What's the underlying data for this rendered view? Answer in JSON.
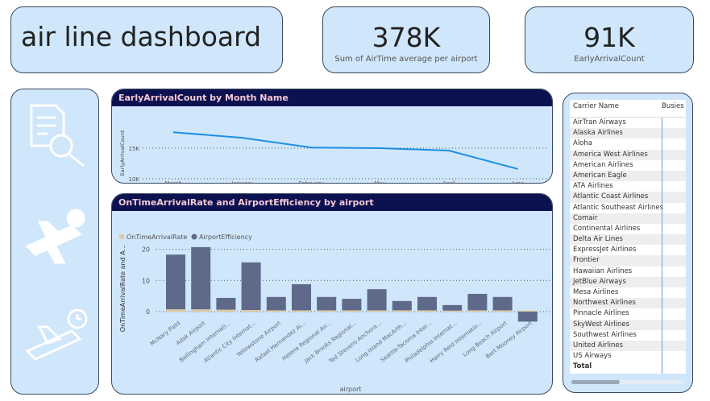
{
  "title": "air line dashboard",
  "kpis": [
    {
      "value": "378K",
      "label": "Sum of AirTime average per airport"
    },
    {
      "value": "91K",
      "label": "EarlyArrivalCount"
    }
  ],
  "icons": [
    "document-search-icon",
    "plane-clock-icon",
    "plane-clock-outline-icon"
  ],
  "chart_data": [
    {
      "type": "line",
      "title": "EarlyArrivalCount by Month Name",
      "ylabel": "EarlyArrivalCount",
      "xlabel": "",
      "categories": [
        "March",
        "January",
        "February",
        "May",
        "April",
        "June"
      ],
      "values": [
        17600,
        16700,
        15100,
        15000,
        14600,
        11600
      ],
      "yticks": [
        "10K",
        "15K"
      ],
      "ylim": [
        10000,
        19000
      ],
      "color": "#1e8fe0",
      "grid": true
    },
    {
      "type": "bar",
      "title": "OnTimeArrivalRate and AirportEfficiency by airport",
      "xlabel": "airport",
      "ylabel": "OnTimeArrivalRate and A...",
      "legend": "top-left",
      "yticks": [
        "0",
        "10",
        "20"
      ],
      "ylim": [
        -5,
        22
      ],
      "categories": [
        "McNary Field",
        "Adak Airport",
        "Bellingham Internati...",
        "Atlantic City Internat...",
        "Yellowstone Airport",
        "Rafael Hernandez Ai...",
        "Helena Regional Air...",
        "Jack Brooks Regional...",
        "Ted Stevens Anchora...",
        "Long Island MacArth...",
        "Seattle-Tacoma Inter...",
        "Philadelphia Internat...",
        "Harry Reid Internatio...",
        "Long Beach Airport",
        "Bert Mooney Airport"
      ],
      "series": [
        {
          "name": "OnTimeArrivalRate",
          "color": "#e0c9a0",
          "values": [
            0.7,
            0.7,
            0.6,
            0.5,
            0.4,
            0.4,
            0.4,
            0.4,
            0.4,
            0.4,
            0.4,
            0.3,
            0.4,
            0.4,
            0.3
          ]
        },
        {
          "name": "AirportEfficiency",
          "color": "#5f6a8a",
          "values": [
            17.6,
            20,
            3.8,
            15.3,
            4.3,
            8.4,
            4.3,
            3.7,
            6.8,
            3.0,
            4.3,
            1.8,
            5.3,
            4.3,
            -3.2
          ]
        }
      ]
    }
  ],
  "table": {
    "columns": [
      "Carrier Name",
      "Busies"
    ],
    "rows": [
      "AirTran Airways",
      "Alaska Airlines",
      "Aloha",
      "America West Airlines",
      "American Airlines",
      "American Eagle",
      "ATA Airlines",
      "Atlantic Coast Airlines",
      "Atlantic Southeast Airlines",
      "Comair",
      "Continental Airlines",
      "Delta Air Lines",
      "ExpressJet Airlines",
      "Frontier",
      "Hawaiian Airlines",
      "JetBlue Airways",
      "Mesa Airlines",
      "Northwest Airlines",
      "Pinnacle Airlines",
      "SkyWest Airlines",
      "Southwest Airlines",
      "United Airlines",
      "US Airways"
    ],
    "total": "Total"
  }
}
